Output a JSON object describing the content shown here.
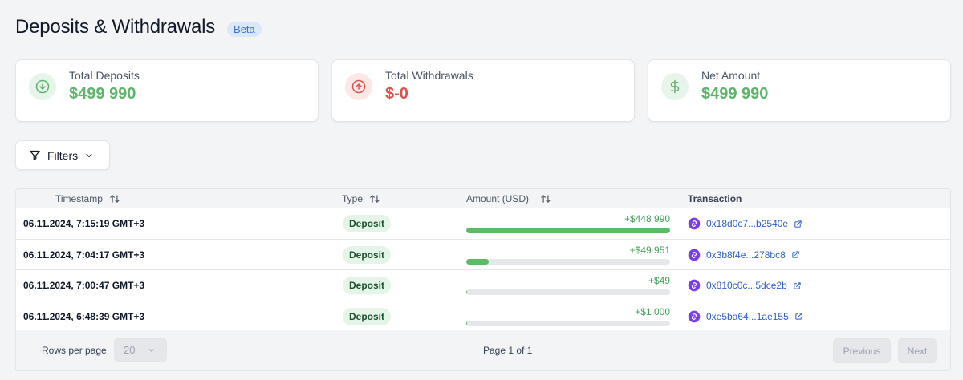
{
  "header": {
    "title": "Deposits & Withdrawals",
    "badge": "Beta"
  },
  "cards": [
    {
      "label": "Total Deposits",
      "value": "$499 990",
      "icon": "arrow-down-circle-icon",
      "tone": "green"
    },
    {
      "label": "Total Withdrawals",
      "value": "$-0",
      "icon": "arrow-up-circle-icon",
      "tone": "red"
    },
    {
      "label": "Net Amount",
      "value": "$499 990",
      "icon": "dollar-icon",
      "tone": "green"
    }
  ],
  "filters": {
    "label": "Filters"
  },
  "table": {
    "columns": {
      "timestamp": "Timestamp",
      "type": "Type",
      "amount": "Amount (USD)",
      "transaction": "Transaction"
    },
    "rows": [
      {
        "timestamp": "06.11.2024, 7:15:19 GMT+3",
        "type": "Deposit",
        "amount": "+$448 990",
        "amount_value": 448990,
        "tx": "0x18d0c7...b2540e"
      },
      {
        "timestamp": "06.11.2024, 7:04:17 GMT+3",
        "type": "Deposit",
        "amount": "+$49 951",
        "amount_value": 49951,
        "tx": "0x3b8f4e...278bc8"
      },
      {
        "timestamp": "06.11.2024, 7:00:47 GMT+3",
        "type": "Deposit",
        "amount": "+$49",
        "amount_value": 49,
        "tx": "0x810c0c...5dce2b"
      },
      {
        "timestamp": "06.11.2024, 6:48:39 GMT+3",
        "type": "Deposit",
        "amount": "+$1 000",
        "amount_value": 1000,
        "tx": "0xe5ba64...1ae155"
      }
    ],
    "amount_max": 448990
  },
  "pagination": {
    "rows_per_page_label": "Rows per page",
    "rows_per_page_value": "20",
    "page_info": "Page 1 of 1",
    "previous_label": "Previous",
    "next_label": "Next"
  },
  "colors": {
    "accent_green": "#5cbc63",
    "accent_red": "#d9534f",
    "link": "#2f5fc4",
    "chain_purple": "#7b3fe4"
  }
}
